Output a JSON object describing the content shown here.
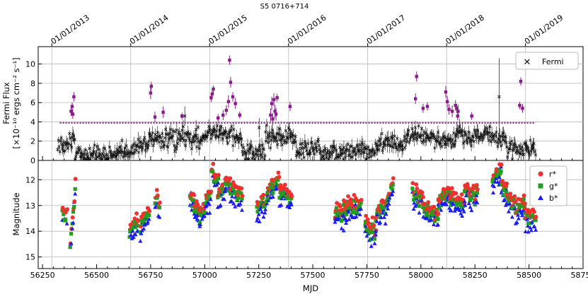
{
  "chart_data": {
    "type": "scatter",
    "title": "S5 0716+714",
    "xlabel": "MJD",
    "xlim": [
      56230,
      58750
    ],
    "x_ticks": [
      56250,
      56500,
      56750,
      57000,
      57250,
      57500,
      57750,
      58000,
      58250,
      58500,
      58750
    ],
    "top_axis": {
      "labels": [
        "01/01/2013",
        "01/01/2014",
        "01/01/2015",
        "01/01/2016",
        "01/01/2017",
        "01/01/2018",
        "01/01/2019"
      ],
      "mjd": [
        56293,
        56658,
        57023,
        57388,
        57754,
        58119,
        58484
      ]
    },
    "panels": [
      {
        "name": "fermi",
        "ylabel_line1": "Fermi Flux",
        "ylabel_line2": "[×10⁻¹⁰ ergs cm⁻² s⁻¹]",
        "ylim": [
          0,
          11.8
        ],
        "y_ticks": [
          0,
          2,
          4,
          6,
          8,
          10
        ],
        "threshold": 3.9,
        "legend": [
          "Fermi"
        ],
        "flare_points": [
          [
            56382,
            5.1
          ],
          [
            56387,
            5.6
          ],
          [
            56390,
            4.8
          ],
          [
            56395,
            6.6
          ],
          [
            56750,
            7.0
          ],
          [
            56753,
            7.7
          ],
          [
            56770,
            4.5
          ],
          [
            56808,
            5.0
          ],
          [
            56895,
            4.6
          ],
          [
            57030,
            6.5
          ],
          [
            57035,
            6.9
          ],
          [
            57040,
            7.4
          ],
          [
            57062,
            4.4
          ],
          [
            57085,
            4.7
          ],
          [
            57100,
            5.2
          ],
          [
            57110,
            6.1
          ],
          [
            57115,
            10.4
          ],
          [
            57120,
            8.1
          ],
          [
            57130,
            6.6
          ],
          [
            57142,
            5.9
          ],
          [
            57162,
            4.7
          ],
          [
            57305,
            4.7
          ],
          [
            57310,
            5.9
          ],
          [
            57315,
            4.3
          ],
          [
            57320,
            6.3
          ],
          [
            57325,
            5.1
          ],
          [
            57330,
            4.8
          ],
          [
            57335,
            6.5
          ],
          [
            57395,
            5.6
          ],
          [
            57975,
            6.4
          ],
          [
            57980,
            8.7
          ],
          [
            58010,
            5.4
          ],
          [
            58030,
            5.6
          ],
          [
            58115,
            7.1
          ],
          [
            58122,
            6.1
          ],
          [
            58130,
            5.3
          ],
          [
            58145,
            5.1
          ],
          [
            58160,
            5.7
          ],
          [
            58166,
            5.4
          ],
          [
            58170,
            4.6
          ],
          [
            58172,
            5.1
          ],
          [
            58235,
            4.6
          ],
          [
            58457,
            5.7
          ],
          [
            58462,
            8.2
          ],
          [
            58470,
            5.4
          ]
        ],
        "baseline_segments": [
          [
            56320,
            56400,
            1.2,
            2.2
          ],
          [
            56400,
            56520,
            0.5,
            0.8
          ],
          [
            56520,
            56640,
            0.4,
            0.8
          ],
          [
            56640,
            56740,
            1.0,
            1.8
          ],
          [
            56740,
            56870,
            2.6,
            2.0
          ],
          [
            56870,
            56960,
            2.4,
            2.3
          ],
          [
            56960,
            57010,
            2.2,
            2.2
          ],
          [
            57010,
            57170,
            3.0,
            2.3
          ],
          [
            57170,
            57280,
            0.7,
            1.0
          ],
          [
            57280,
            57420,
            2.6,
            2.3
          ],
          [
            57420,
            57530,
            1.1,
            1.2
          ],
          [
            57530,
            57640,
            0.6,
            0.9
          ],
          [
            57640,
            57800,
            0.8,
            1.0
          ],
          [
            57800,
            57940,
            1.6,
            1.8
          ],
          [
            57940,
            58060,
            2.6,
            2.4
          ],
          [
            58060,
            58160,
            2.0,
            1.8
          ],
          [
            58160,
            58250,
            3.0,
            2.2
          ],
          [
            58250,
            58400,
            2.9,
            2.1
          ],
          [
            58400,
            58530,
            1.0,
            1.3
          ]
        ],
        "isolated_points": [
          [
            56908,
            4.6
          ],
          [
            56960,
            3.2
          ],
          [
            57252,
            3.4
          ],
          [
            58362,
            6.6
          ]
        ]
      },
      {
        "name": "optical",
        "ylabel": "Magnitude",
        "ylim": [
          15.45,
          11.25
        ],
        "y_ticks": [
          12,
          13,
          14,
          15
        ],
        "inverted": true,
        "legend": [
          "r*",
          "g*",
          "b*"
        ],
        "colors": {
          "r": "#ff2a2a",
          "g": "#1fa01f",
          "b": "#1a1aff",
          "fermi": "#111111",
          "flare": "#8b1a8b"
        },
        "season_segments": [
          [
            56340,
            56360,
            13.2,
            13.3,
            0.28
          ],
          [
            56375,
            56400,
            14.4,
            12.2,
            0.28
          ],
          [
            56650,
            56690,
            13.9,
            13.5,
            0.3
          ],
          [
            56700,
            56740,
            13.7,
            13.2,
            0.3
          ],
          [
            56770,
            56790,
            12.6,
            12.9,
            0.3
          ],
          [
            56930,
            56975,
            12.6,
            13.2,
            0.35
          ],
          [
            56975,
            57030,
            13.4,
            12.2,
            0.4
          ],
          [
            57030,
            57060,
            11.6,
            12.1,
            0.4
          ],
          [
            57060,
            57110,
            12.6,
            11.9,
            0.4
          ],
          [
            57110,
            57170,
            12.2,
            12.7,
            0.4
          ],
          [
            57240,
            57290,
            13.0,
            12.7,
            0.4
          ],
          [
            57290,
            57340,
            12.3,
            11.9,
            0.4
          ],
          [
            57340,
            57400,
            12.3,
            12.6,
            0.4
          ],
          [
            57600,
            57640,
            13.2,
            13.4,
            0.45
          ],
          [
            57640,
            57720,
            13.0,
            12.9,
            0.45
          ],
          [
            57740,
            57790,
            13.6,
            13.9,
            0.5
          ],
          [
            57790,
            57850,
            13.3,
            12.7,
            0.45
          ],
          [
            57850,
            57870,
            12.6,
            12.1,
            0.45
          ],
          [
            57960,
            58010,
            12.4,
            12.7,
            0.45
          ],
          [
            58010,
            58080,
            13.1,
            13.3,
            0.45
          ],
          [
            58080,
            58130,
            12.7,
            12.4,
            0.4
          ],
          [
            58130,
            58200,
            12.6,
            12.9,
            0.4
          ],
          [
            58200,
            58260,
            12.3,
            12.4,
            0.4
          ],
          [
            58330,
            58370,
            11.8,
            11.6,
            0.45
          ],
          [
            58370,
            58430,
            12.2,
            12.9,
            0.45
          ],
          [
            58430,
            58480,
            13.1,
            12.9,
            0.45
          ],
          [
            58480,
            58530,
            13.3,
            13.6,
            0.45
          ]
        ]
      }
    ]
  }
}
